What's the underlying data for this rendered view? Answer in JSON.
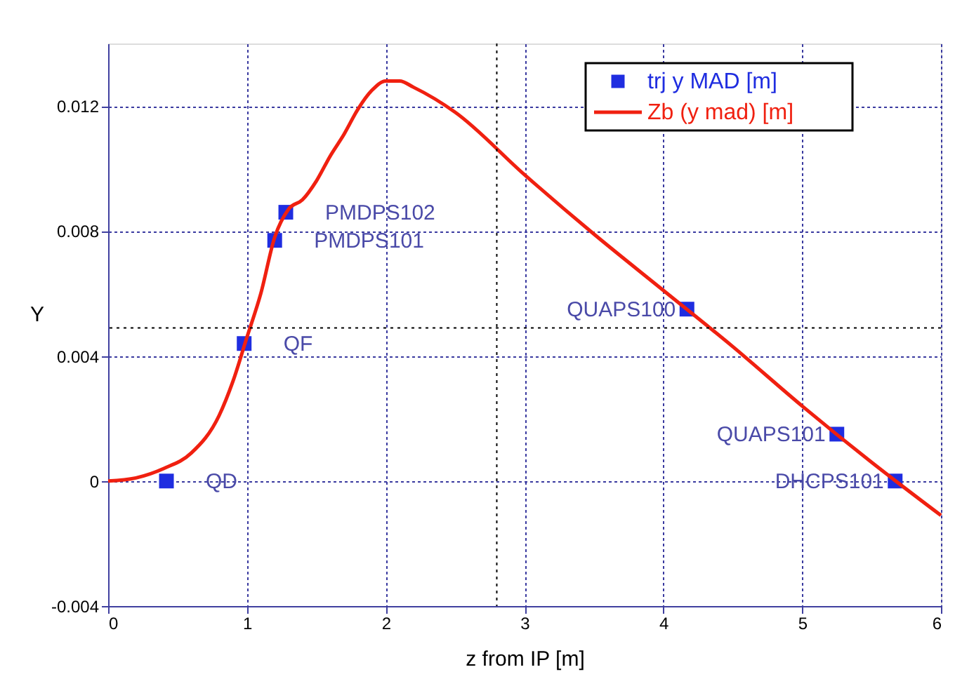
{
  "chart_data": {
    "type": "scatter",
    "xlabel": "z from IP [m]",
    "ylabel": "Y",
    "xlim": [
      0,
      6
    ],
    "xticks": [
      0,
      1,
      2,
      3,
      4,
      5,
      6
    ],
    "ylim": [
      -0.004,
      0.014
    ],
    "yticks": [
      -0.004,
      0,
      0.004,
      0.008,
      0.012
    ],
    "grid": true,
    "legend": "top right",
    "series": [
      {
        "name": "trj y MAD [m]",
        "type": "scatter",
        "marker": "square",
        "color": "#1f2de0",
        "x": [
          0.42,
          0.98,
          1.2,
          1.28,
          4.17,
          5.25,
          5.67
        ],
        "values": [
          0,
          0.0044,
          0.0077,
          0.0086,
          0.0055,
          0.0015,
          0
        ]
      },
      {
        "name": "Zb  (y mad) [m]",
        "type": "line",
        "marker": "none",
        "line_style": "solid",
        "color": "#f02010",
        "x": [
          0,
          0.2,
          0.4,
          0.6,
          0.8,
          0.9,
          1.0,
          1.1,
          1.2,
          1.3,
          1.4,
          1.5,
          1.6,
          1.7,
          1.8,
          1.9,
          2.0,
          2.1,
          2.2,
          2.5,
          3.0,
          3.5,
          4.0,
          4.5,
          5.0,
          5.5,
          6.0
        ],
        "values": [
          0,
          0.0001,
          0.0004,
          0.0009,
          0.0021,
          0.0032,
          0.0046,
          0.006,
          0.0078,
          0.0087,
          0.009,
          0.0096,
          0.0104,
          0.0111,
          0.0119,
          0.0125,
          0.0128,
          0.0128,
          0.0126,
          0.0118,
          0.0098,
          0.0079,
          0.0061,
          0.0043,
          0.0024,
          0.0006,
          -0.0011
        ]
      }
    ],
    "ref_lines": [
      {
        "axis": "x",
        "value": 2.8,
        "color": "#000000",
        "line_style": "dotted"
      },
      {
        "axis": "y",
        "value": 0.0049,
        "color": "#000000",
        "line_style": "dotted"
      }
    ],
    "annotations": [
      {
        "text": "QD",
        "x": 0.42,
        "y": 0
      },
      {
        "text": "QF",
        "x": 0.98,
        "y": 0.0044
      },
      {
        "text": "PMDPS101",
        "x": 1.2,
        "y": 0.0077
      },
      {
        "text": "PMDPS102",
        "x": 1.28,
        "y": 0.0086
      },
      {
        "text": "QUAPS100",
        "x": 4.17,
        "y": 0.0055
      },
      {
        "text": "QUAPS101",
        "x": 5.25,
        "y": 0.0015
      },
      {
        "text": "DHCPS101",
        "x": 5.67,
        "y": 0
      }
    ]
  }
}
